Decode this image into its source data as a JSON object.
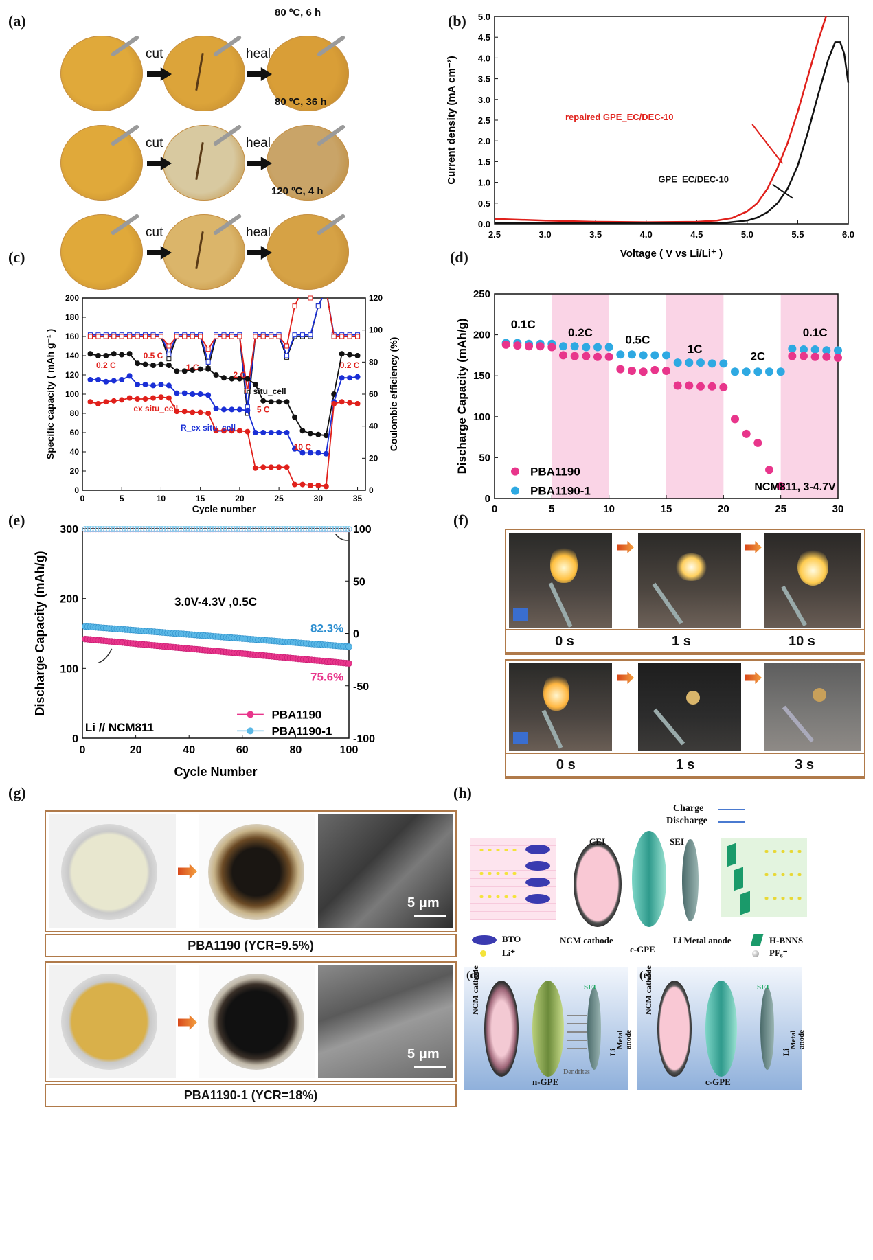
{
  "panels": {
    "a": {
      "label": "(a)",
      "rows": [
        {
          "condition": "80 ºC, 6 h",
          "step1": "cut",
          "step2": "heal"
        },
        {
          "condition": "80 ºC, 36 h",
          "step1": "cut",
          "step2": "heal"
        },
        {
          "condition": "120 ºC, 4 h",
          "step1": "cut",
          "step2": "heal"
        }
      ]
    },
    "b": {
      "label": "(b)"
    },
    "c": {
      "label": "(c)"
    },
    "d": {
      "label": "(d)"
    },
    "e": {
      "label": "(e)"
    },
    "f": {
      "label": "(f)",
      "top_times": [
        "0 s",
        "1 s",
        "10 s"
      ],
      "bottom_times": [
        "0 s",
        "1 s",
        "3 s"
      ]
    },
    "g": {
      "label": "(g)",
      "top_caption": "PBA1190  (YCR=9.5%)",
      "bottom_caption": "PBA1190-1  (YCR=18%)",
      "scalebar": "5 μm"
    },
    "h": {
      "label": "(h)",
      "charge": "Charge",
      "discharge": "Discharge",
      "cei": "CEI",
      "sei": "SEI",
      "ncm_cathode": "NCM cathode",
      "c_gpe": "c-GPE",
      "li_anode": "Li  Metal anode",
      "bto": "BTO",
      "li_ion": "Li⁺",
      "hbnns": "H-BNNS",
      "pf6": "PF₆⁻",
      "sub_d": "(d)",
      "sub_e": "(e)",
      "n_gpe": "n-GPE",
      "dendrites": "Dendrites",
      "li": "Li",
      "metal_anode": "Metal anode"
    }
  },
  "chart_data": [
    {
      "id": "b",
      "type": "line",
      "xlabel": "Voltage ( V vs Li/Li⁺ )",
      "ylabel": "Current density (mA cm⁻²)",
      "xlim": [
        2.5,
        6.0
      ],
      "ylim": [
        0,
        5.0
      ],
      "xticks": [
        "2.5",
        "3.0",
        "3.5",
        "4.0",
        "4.5",
        "5.0",
        "5.5",
        "6.0"
      ],
      "yticks": [
        "0.0",
        "0.5",
        "1.0",
        "1.5",
        "2.0",
        "2.5",
        "3.0",
        "3.5",
        "4.0",
        "4.5",
        "5.0"
      ],
      "series": [
        {
          "name": "repaired GPE_EC/DEC-10",
          "color": "#e0201b",
          "x": [
            2.5,
            3.0,
            3.5,
            4.0,
            4.5,
            4.7,
            4.85,
            5.0,
            5.1,
            5.2,
            5.3,
            5.4,
            5.5,
            5.6,
            5.7,
            5.78
          ],
          "y": [
            0.12,
            0.08,
            0.05,
            0.04,
            0.05,
            0.08,
            0.14,
            0.3,
            0.5,
            0.85,
            1.35,
            1.95,
            2.7,
            3.55,
            4.4,
            5.0
          ]
        },
        {
          "name": "GPE_EC/DEC-10",
          "color": "#111111",
          "x": [
            2.5,
            3.0,
            3.5,
            4.0,
            4.5,
            4.8,
            5.0,
            5.1,
            5.2,
            5.3,
            5.4,
            5.5,
            5.6,
            5.7,
            5.8,
            5.87,
            5.92,
            5.96,
            6.0
          ],
          "y": [
            0.02,
            0.02,
            0.02,
            0.02,
            0.02,
            0.03,
            0.08,
            0.15,
            0.28,
            0.5,
            0.85,
            1.4,
            2.2,
            3.1,
            3.95,
            4.38,
            4.38,
            4.1,
            3.4
          ]
        }
      ]
    },
    {
      "id": "c",
      "type": "line",
      "xlabel": "Cycle number",
      "ylabel": "Specific capacity ( mAh g⁻¹ )",
      "y2label": "Coulombic efficiency (%)",
      "xlim": [
        0,
        36
      ],
      "ylim": [
        0,
        200
      ],
      "y2lim": [
        0,
        120
      ],
      "xticks": [
        "0",
        "5",
        "10",
        "15",
        "20",
        "25",
        "30",
        "35"
      ],
      "yticks": [
        "0",
        "20",
        "40",
        "60",
        "80",
        "100",
        "120",
        "140",
        "160",
        "180",
        "200"
      ],
      "y2ticks": [
        "0",
        "20",
        "40",
        "60",
        "80",
        "100",
        "120"
      ],
      "rate_labels": [
        "0.2 C",
        "0.5 C",
        "1 C",
        "2 C",
        "5 C",
        "10 C",
        "0.2 C"
      ],
      "series_labels": {
        "in_situ": "in situ_cell",
        "ex_situ": "ex situ_cell",
        "r_ex_situ": "R_ex situ_cell"
      },
      "series": [
        {
          "name": "in situ_cell",
          "color": "#111111",
          "x": [
            1,
            2,
            3,
            4,
            5,
            6,
            7,
            8,
            9,
            10,
            11,
            12,
            13,
            14,
            15,
            16,
            17,
            18,
            19,
            20,
            21,
            22,
            23,
            24,
            25,
            26,
            27,
            28,
            29,
            30,
            31,
            32,
            33,
            34,
            35
          ],
          "y": [
            142,
            140,
            140,
            142,
            141,
            142,
            132,
            131,
            130,
            131,
            130,
            124,
            124,
            125,
            126,
            126,
            120,
            117,
            116,
            116,
            116,
            110,
            93,
            92,
            92,
            92,
            76,
            62,
            59,
            58,
            57,
            100,
            142,
            141,
            140
          ]
        },
        {
          "name": "R_ex situ_cell",
          "color": "#1a2fd6",
          "x": [
            1,
            2,
            3,
            4,
            5,
            6,
            7,
            8,
            9,
            10,
            11,
            12,
            13,
            14,
            15,
            16,
            17,
            18,
            19,
            20,
            21,
            22,
            23,
            24,
            25,
            26,
            27,
            28,
            29,
            30,
            31,
            32,
            33,
            34,
            35
          ],
          "y": [
            115,
            115,
            113,
            114,
            115,
            119,
            110,
            110,
            109,
            110,
            109,
            101,
            101,
            100,
            100,
            99,
            85,
            84,
            84,
            84,
            83,
            60,
            60,
            60,
            60,
            60,
            43,
            39,
            39,
            39,
            38,
            92,
            117,
            117,
            118
          ]
        },
        {
          "name": "ex situ_cell",
          "color": "#e0201b",
          "x": [
            1,
            2,
            3,
            4,
            5,
            6,
            7,
            8,
            9,
            10,
            11,
            12,
            13,
            14,
            15,
            16,
            17,
            18,
            19,
            20,
            21,
            22,
            23,
            24,
            25,
            26,
            27,
            28,
            29,
            30,
            31,
            32,
            33,
            34,
            35
          ],
          "y": [
            92,
            90,
            92,
            93,
            94,
            96,
            95,
            95,
            96,
            97,
            96,
            82,
            82,
            81,
            81,
            80,
            62,
            62,
            62,
            62,
            61,
            23,
            24,
            24,
            24,
            24,
            6,
            6,
            5,
            5,
            4,
            90,
            92,
            91,
            90
          ]
        }
      ]
    },
    {
      "id": "d",
      "type": "scatter",
      "xlabel": "",
      "ylabel": "Discharge Capacity (mAh/g)",
      "xlim": [
        0,
        30
      ],
      "ylim": [
        0,
        250
      ],
      "xticks": [
        "0",
        "5",
        "10",
        "15",
        "20",
        "25",
        "30"
      ],
      "yticks": [
        "0",
        "50",
        "100",
        "150",
        "200",
        "250"
      ],
      "rate_labels": [
        "0.1C",
        "0.2C",
        "0.5C",
        "1C",
        "2C",
        "0.1C"
      ],
      "annotation": "NCM811, 3-4.7V",
      "series": [
        {
          "name": "PBA1190",
          "color": "#e8358b",
          "x": [
            1,
            2,
            3,
            4,
            5,
            6,
            7,
            8,
            9,
            10,
            11,
            12,
            13,
            14,
            15,
            16,
            17,
            18,
            19,
            20,
            21,
            22,
            23,
            24,
            25,
            26,
            27,
            28,
            29,
            30
          ],
          "y": [
            188,
            187,
            186,
            186,
            185,
            175,
            174,
            174,
            173,
            173,
            158,
            156,
            155,
            157,
            156,
            138,
            138,
            137,
            137,
            136,
            97,
            79,
            68,
            35,
            15,
            174,
            174,
            173,
            173,
            172
          ]
        },
        {
          "name": "PBA1190-1",
          "color": "#2ea9e2",
          "x": [
            1,
            2,
            3,
            4,
            5,
            6,
            7,
            8,
            9,
            10,
            11,
            12,
            13,
            14,
            15,
            16,
            17,
            18,
            19,
            20,
            21,
            22,
            23,
            24,
            25,
            26,
            27,
            28,
            29,
            30
          ],
          "y": [
            190,
            190,
            189,
            189,
            189,
            186,
            186,
            185,
            185,
            185,
            176,
            176,
            175,
            175,
            175,
            166,
            166,
            166,
            165,
            165,
            155,
            155,
            155,
            155,
            155,
            183,
            182,
            182,
            181,
            181
          ]
        }
      ]
    },
    {
      "id": "e",
      "type": "scatter",
      "xlabel": "Cycle Number",
      "ylabel": "Discharge Capacity (mAh/g)",
      "xlim": [
        0,
        100
      ],
      "ylim": [
        0,
        300
      ],
      "y2lim": [
        -100,
        100
      ],
      "xticks": [
        "0",
        "20",
        "40",
        "60",
        "80",
        "100"
      ],
      "yticks": [
        "0",
        "100",
        "200",
        "300"
      ],
      "y2ticks": [
        "-100",
        "-50",
        "0",
        "50",
        "100"
      ],
      "condition": "3.0V-4.3V ,0.5C",
      "cell": "Li // NCM811",
      "retention_blue": "82.3%",
      "retention_pink": "75.6%",
      "series": [
        {
          "name": "PBA1190",
          "color": "#e8358b",
          "x_start": 1,
          "x_end": 100,
          "y_start": 142,
          "y_end": 107,
          "ce_value": 99.5
        },
        {
          "name": "PBA1190-1",
          "color": "#5bb8e6",
          "x_start": 1,
          "x_end": 100,
          "y_start": 160,
          "y_end": 131,
          "ce_value": 99.7
        }
      ]
    }
  ]
}
